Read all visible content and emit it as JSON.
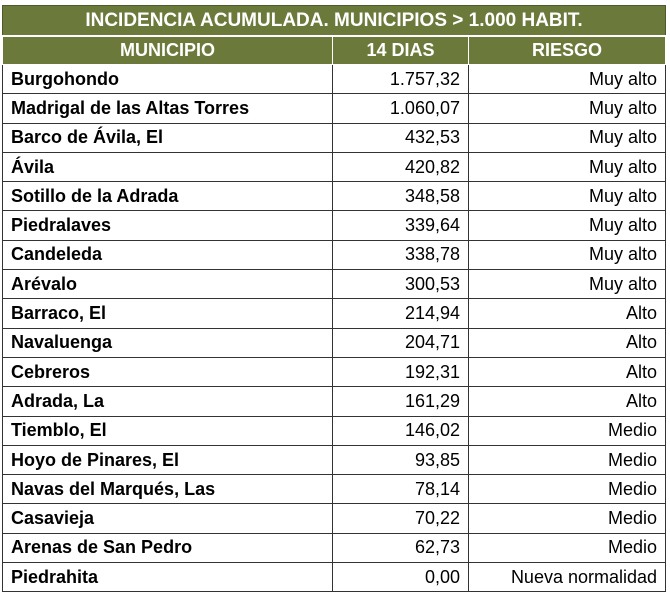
{
  "table": {
    "title": "INCIDENCIA ACUMULADA. MUNICIPIOS > 1.000 HABIT.",
    "headers": [
      "MUNICIPIO",
      "14 DIAS",
      "RIESGO"
    ],
    "rows": [
      {
        "municipio": "Burgohondo",
        "dias14": "1.757,32",
        "riesgo": "Muy alto"
      },
      {
        "municipio": "Madrigal de las Altas Torres",
        "dias14": "1.060,07",
        "riesgo": "Muy alto"
      },
      {
        "municipio": "Barco de Ávila, El",
        "dias14": "432,53",
        "riesgo": "Muy alto"
      },
      {
        "municipio": "Ávila",
        "dias14": "420,82",
        "riesgo": "Muy alto"
      },
      {
        "municipio": "Sotillo de la Adrada",
        "dias14": "348,58",
        "riesgo": "Muy alto"
      },
      {
        "municipio": "Piedralaves",
        "dias14": "339,64",
        "riesgo": "Muy alto"
      },
      {
        "municipio": "Candeleda",
        "dias14": "338,78",
        "riesgo": "Muy alto"
      },
      {
        "municipio": "Arévalo",
        "dias14": "300,53",
        "riesgo": "Muy alto"
      },
      {
        "municipio": "Barraco, El",
        "dias14": "214,94",
        "riesgo": "Alto"
      },
      {
        "municipio": "Navaluenga",
        "dias14": "204,71",
        "riesgo": "Alto"
      },
      {
        "municipio": "Cebreros",
        "dias14": "192,31",
        "riesgo": "Alto"
      },
      {
        "municipio": "Adrada, La",
        "dias14": "161,29",
        "riesgo": "Alto"
      },
      {
        "municipio": "Tiemblo, El",
        "dias14": "146,02",
        "riesgo": "Medio"
      },
      {
        "municipio": "Hoyo de Pinares, El",
        "dias14": "93,85",
        "riesgo": "Medio"
      },
      {
        "municipio": "Navas del Marqués, Las",
        "dias14": "78,14",
        "riesgo": "Medio"
      },
      {
        "municipio": "Casavieja",
        "dias14": "70,22",
        "riesgo": "Medio"
      },
      {
        "municipio": "Arenas de San Pedro",
        "dias14": "62,73",
        "riesgo": "Medio"
      },
      {
        "municipio": "Piedrahita",
        "dias14": "0,00",
        "riesgo": "Nueva normalidad"
      }
    ]
  },
  "colors": {
    "header_bg": "#6b7a3b",
    "header_text": "#ffffff",
    "grid": "#333333"
  },
  "chart_data": {
    "type": "table",
    "title": "INCIDENCIA ACUMULADA. MUNICIPIOS > 1.000 HABIT.",
    "columns": [
      "MUNICIPIO",
      "14 DIAS",
      "RIESGO"
    ],
    "categories": [
      "Burgohondo",
      "Madrigal de las Altas Torres",
      "Barco de Ávila, El",
      "Ávila",
      "Sotillo de la Adrada",
      "Piedralaves",
      "Candeleda",
      "Arévalo",
      "Barraco, El",
      "Navaluenga",
      "Cebreros",
      "Adrada, La",
      "Tiemblo, El",
      "Hoyo de Pinares, El",
      "Navas del Marqués, Las",
      "Casavieja",
      "Arenas de San Pedro",
      "Piedrahita"
    ],
    "values": [
      1757.32,
      1060.07,
      432.53,
      420.82,
      348.58,
      339.64,
      338.78,
      300.53,
      214.94,
      204.71,
      192.31,
      161.29,
      146.02,
      93.85,
      78.14,
      70.22,
      62.73,
      0.0
    ],
    "risk": [
      "Muy alto",
      "Muy alto",
      "Muy alto",
      "Muy alto",
      "Muy alto",
      "Muy alto",
      "Muy alto",
      "Muy alto",
      "Alto",
      "Alto",
      "Alto",
      "Alto",
      "Medio",
      "Medio",
      "Medio",
      "Medio",
      "Medio",
      "Nueva normalidad"
    ]
  }
}
